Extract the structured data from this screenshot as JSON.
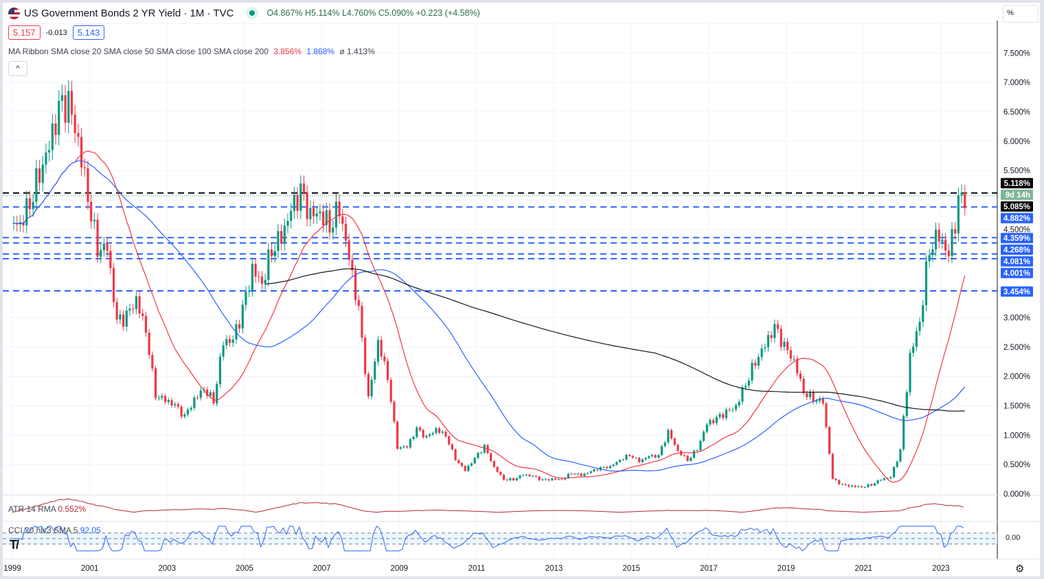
{
  "header": {
    "title": "US Government Bonds 2 YR Yield · 1M · TVC",
    "ohlc": "O4.867% H5.114% L4.760% C5.090% +0.223 (+4.58%)"
  },
  "quote": {
    "bid": "5.157",
    "spread": "-0.013",
    "ask": "5.143"
  },
  "ma_ribbon": {
    "label": "MA Ribbon SMA close 20 SMA close 50 SMA close 100 SMA close 200",
    "v1": "3.856%",
    "v2": "1.868%",
    "v3": "ø",
    "v4": "1.413%"
  },
  "collapse_label": "^",
  "scale_mode": "%",
  "atr": {
    "label": "ATR 14 RMA",
    "value": "0.552%"
  },
  "cci": {
    "label": "CCI 20 hlc3 SMA 5",
    "value": "92.05",
    "axis": "0.00"
  },
  "colors": {
    "up": "#089981",
    "down": "#f23645",
    "sma20": "#f23645",
    "sma50": "#2962ff",
    "sma200": "#131722",
    "level": "#2962ff"
  },
  "chart_data": {
    "type": "candlestick",
    "title": "US Government Bonds 2 YR Yield",
    "x_ticks": [
      "1999",
      "2001",
      "2003",
      "2005",
      "2007",
      "2009",
      "2011",
      "2013",
      "2015",
      "2017",
      "2019",
      "2021",
      "2023"
    ],
    "y_ticks": [
      "7.500%",
      "7.000%",
      "6.500%",
      "6.000%",
      "5.500%",
      "4.500%",
      "3.000%",
      "2.500%",
      "2.000%",
      "1.500%",
      "1.000%",
      "0.500%",
      "0.000%"
    ],
    "ylim": [
      0,
      8
    ],
    "start_year": 1999,
    "quarterly_close": [
      4.6,
      5.0,
      5.5,
      5.9,
      6.5,
      6.6,
      6.0,
      5.1,
      4.2,
      4.2,
      2.9,
      3.0,
      3.3,
      2.8,
      1.7,
      1.6,
      1.5,
      1.3,
      1.6,
      1.8,
      1.6,
      2.6,
      2.6,
      3.1,
      3.8,
      3.6,
      4.2,
      4.4,
      4.8,
      5.1,
      4.7,
      4.8,
      4.6,
      4.9,
      4.0,
      3.1,
      1.6,
      2.6,
      2.0,
      0.8,
      0.8,
      1.1,
      0.95,
      1.1,
      1.0,
      0.6,
      0.4,
      0.6,
      0.8,
      0.45,
      0.25,
      0.25,
      0.33,
      0.3,
      0.23,
      0.25,
      0.25,
      0.36,
      0.32,
      0.38,
      0.44,
      0.46,
      0.58,
      0.67,
      0.56,
      0.64,
      0.64,
      1.05,
      0.73,
      0.58,
      0.77,
      1.19,
      1.27,
      1.38,
      1.49,
      1.89,
      2.27,
      2.53,
      2.82,
      2.49,
      2.26,
      1.75,
      1.63,
      1.57,
      0.25,
      0.15,
      0.13,
      0.12,
      0.16,
      0.25,
      0.28,
      0.73,
      2.33,
      2.95,
      4.22,
      4.43,
      4.03,
      4.9,
      5.09
    ],
    "levels": [
      {
        "value": 5.118,
        "label": "5.118%",
        "color": "#000000"
      },
      {
        "value": 4.882,
        "label": "4.882%",
        "color": "#2962ff"
      },
      {
        "value": 4.359,
        "label": "4.359%",
        "color": "#2962ff"
      },
      {
        "value": 4.268,
        "label": "4.268%",
        "color": "#2962ff"
      },
      {
        "value": 4.081,
        "label": "4.081%",
        "color": "#2962ff"
      },
      {
        "value": 4.001,
        "label": "4.001%",
        "color": "#2962ff"
      },
      {
        "value": 3.454,
        "label": "3.454%",
        "color": "#2962ff"
      }
    ],
    "last_price": {
      "value": 5.085,
      "label": "5.085%",
      "countdown": "9d 14h"
    }
  }
}
